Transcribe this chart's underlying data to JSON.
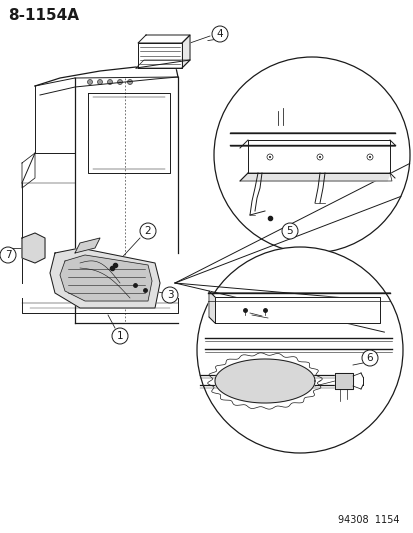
{
  "title": "8-1154A",
  "footer": "94308  1154",
  "bg_color": "#ffffff",
  "line_color": "#1a1a1a",
  "title_fontsize": 11,
  "label_fontsize": 7.5,
  "footer_fontsize": 7
}
